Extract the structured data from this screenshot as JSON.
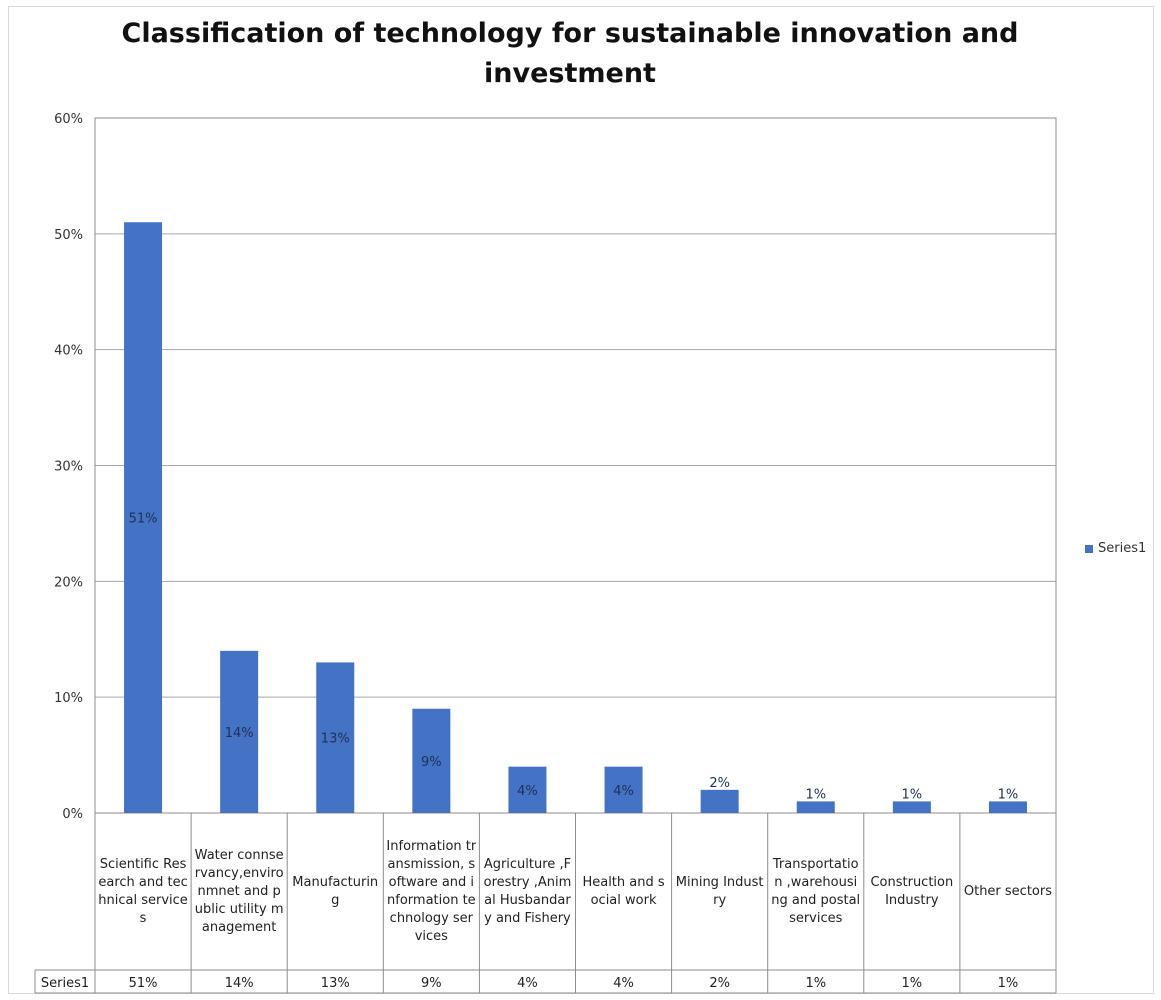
{
  "chart_data": {
    "type": "bar",
    "title": "Classification of technology for sustainable innovation and investment",
    "categories": [
      "Scientific Research and technical services",
      "Water connservancy,environmnet and public utility management",
      "Manufacturing",
      "Information transmission, software and information technology services",
      "Agriculture ,Forestry ,Animal Husbandary and Fishery",
      "Health and social work",
      "Mining Industry",
      "Transportation ,warehousing and postal services",
      "Construction Industry",
      "Other sectors"
    ],
    "series": [
      {
        "name": "Series1",
        "values": [
          51,
          14,
          13,
          9,
          4,
          4,
          2,
          1,
          1,
          1
        ],
        "labels": [
          "51%",
          "14%",
          "13%",
          "9%",
          "4%",
          "4%",
          "2%",
          "1%",
          "1%",
          "1%"
        ]
      }
    ],
    "y_ticks": [
      "0%",
      "10%",
      "20%",
      "30%",
      "40%",
      "50%",
      "60%"
    ],
    "ylim": [
      0,
      60
    ],
    "grid": true,
    "legend_position": "right",
    "data_table": true,
    "bar_color": "#4472c4"
  }
}
